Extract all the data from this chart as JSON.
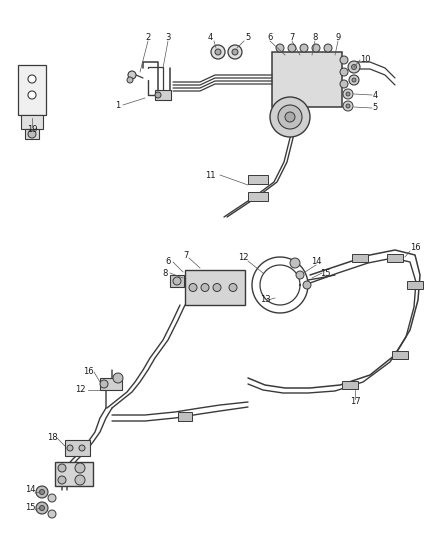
{
  "bg_color": "#ffffff",
  "line_color": "#3a3a3a",
  "label_color": "#1a1a1a",
  "fig_width": 4.38,
  "fig_height": 5.33,
  "dpi": 100,
  "lw_tube": 1.3,
  "lw_part": 1.0,
  "label_fs": 6.0,
  "leader_lw": 0.5,
  "leader_color": "#555555"
}
